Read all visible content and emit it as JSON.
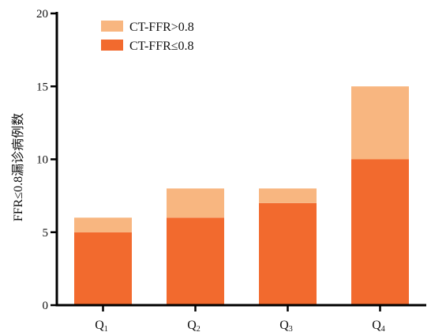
{
  "chart_data": {
    "type": "bar",
    "stacked": true,
    "categories": [
      {
        "base": "Q",
        "sub": "1"
      },
      {
        "base": "Q",
        "sub": "2"
      },
      {
        "base": "Q",
        "sub": "3"
      },
      {
        "base": "Q",
        "sub": "4"
      }
    ],
    "series": [
      {
        "name": "CT-FFR≤0.8",
        "values": [
          5,
          6,
          7,
          10
        ],
        "color": "#f26a2e"
      },
      {
        "name": "CT-FFR>0.8",
        "values": [
          1,
          2,
          1,
          5
        ],
        "color": "#f8b680"
      }
    ],
    "ylabel": "FFR≤0.8漏诊病例数",
    "ylim": [
      0,
      20
    ],
    "yticks": [
      0,
      5,
      10,
      15,
      20
    ],
    "legend_position": "top-left",
    "legend_order": [
      1,
      0
    ],
    "grid": false
  }
}
